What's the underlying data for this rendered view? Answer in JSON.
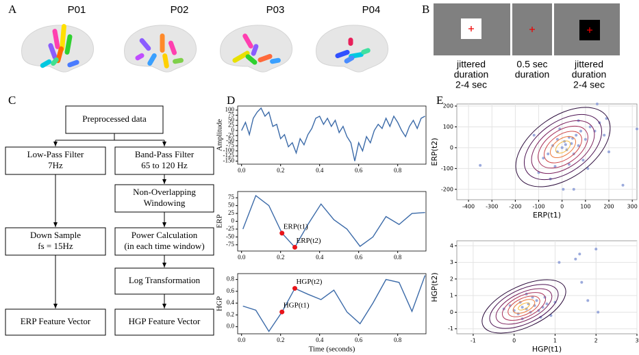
{
  "panel_labels": [
    "A",
    "B",
    "C",
    "D",
    "E"
  ],
  "participants": [
    "P01",
    "P02",
    "P03",
    "P04"
  ],
  "stimulus": {
    "captions": [
      [
        "jittered",
        "duration",
        "2-4 sec"
      ],
      [
        "0.5 sec",
        "duration"
      ],
      [
        "jittered",
        "duration",
        "2-4 sec"
      ]
    ]
  },
  "flowchart": {
    "nodes": [
      {
        "lines": [
          "Preprocessed data"
        ]
      },
      {
        "lines": [
          "Low-Pass Filter",
          "7Hz"
        ]
      },
      {
        "lines": [
          "Band-Pass Filter",
          "65 to 120 Hz"
        ]
      },
      {
        "lines": [
          "Non-Overlapping",
          "Windowing"
        ]
      },
      {
        "lines": [
          "Down Sample",
          "fs = 15Hz"
        ]
      },
      {
        "lines": [
          "Power Calculation",
          "(in each time window)"
        ]
      },
      {
        "lines": [
          "Log Transformation"
        ]
      },
      {
        "lines": [
          "ERP Feature Vector"
        ]
      },
      {
        "lines": [
          "HGP Feature Vector"
        ]
      }
    ]
  },
  "chart_data": [
    {
      "type": "line",
      "ylabel": "Amplitude",
      "color": "#3b6aa8",
      "x": [
        0,
        0.02,
        0.04,
        0.06,
        0.08,
        0.1,
        0.12,
        0.14,
        0.16,
        0.18,
        0.2,
        0.22,
        0.24,
        0.26,
        0.28,
        0.3,
        0.32,
        0.34,
        0.36,
        0.38,
        0.4,
        0.42,
        0.44,
        0.46,
        0.48,
        0.5,
        0.52,
        0.54,
        0.56,
        0.58,
        0.6,
        0.62,
        0.64,
        0.66,
        0.68,
        0.7,
        0.72,
        0.74,
        0.76,
        0.78,
        0.8,
        0.82,
        0.84,
        0.86,
        0.88,
        0.9,
        0.92,
        0.94
      ],
      "values": [
        0,
        40,
        -20,
        60,
        90,
        110,
        70,
        90,
        20,
        30,
        -40,
        -20,
        -80,
        -60,
        -110,
        -40,
        -70,
        -20,
        10,
        60,
        70,
        30,
        60,
        20,
        50,
        -10,
        20,
        -30,
        -60,
        -150,
        -60,
        -100,
        -30,
        -60,
        0,
        30,
        10,
        60,
        20,
        70,
        40,
        0,
        -30,
        20,
        50,
        10,
        60,
        70
      ],
      "xlim": [
        -0.02,
        0.945
      ],
      "ylim": [
        -165,
        120
      ],
      "xticks": [
        {
          "value": 0,
          "label": "0.0"
        },
        0.2,
        0.4,
        0.6,
        0.8
      ],
      "yticks": [
        -150,
        -125,
        -100,
        -75,
        -50,
        -25,
        0,
        25,
        50,
        75,
        100
      ],
      "grid": false
    },
    {
      "type": "line",
      "ylabel": "ERP",
      "color": "#3b6aa8",
      "x": [
        0.007,
        0.073,
        0.14,
        0.207,
        0.273,
        0.34,
        0.407,
        0.473,
        0.54,
        0.607,
        0.673,
        0.74,
        0.807,
        0.873,
        0.94
      ],
      "values": [
        -25,
        82,
        50,
        -38,
        -83,
        -10,
        55,
        5,
        -25,
        -80,
        -50,
        15,
        -10,
        25,
        28
      ],
      "highlight": [
        {
          "index": 3,
          "label": "ERP(t1)"
        },
        {
          "index": 4,
          "label": "ERP(t2)"
        }
      ],
      "highlight_color": "#e8141a",
      "xlim": [
        -0.02,
        0.945
      ],
      "ylim": [
        -95,
        95
      ],
      "xticks": [
        {
          "value": 0,
          "label": "0.0"
        },
        0.2,
        0.4,
        0.6,
        0.8
      ],
      "yticks": [
        -75,
        -50,
        -25,
        0,
        25,
        50,
        75
      ],
      "grid": false
    },
    {
      "type": "line",
      "ylabel": "HGP",
      "xlabel": "Time (seconds)",
      "color": "#3b6aa8",
      "x": [
        0.007,
        0.073,
        0.14,
        0.207,
        0.273,
        0.34,
        0.407,
        0.473,
        0.54,
        0.607,
        0.673,
        0.74,
        0.807,
        0.873,
        0.94
      ],
      "values": [
        0.35,
        0.28,
        -0.08,
        0.25,
        0.65,
        0.55,
        0.46,
        0.62,
        0.25,
        0.05,
        0.4,
        0.8,
        0.75,
        0.26,
        0.87
      ],
      "highlight": [
        {
          "index": 3,
          "label": "HGP(t1)"
        },
        {
          "index": 4,
          "label": "HGP(t2)"
        }
      ],
      "highlight_color": "#e8141a",
      "xlim": [
        -0.02,
        0.945
      ],
      "ylim": [
        -0.12,
        0.9
      ],
      "xticks": [
        {
          "value": 0,
          "label": "0.0"
        },
        0.2,
        0.4,
        0.6,
        0.8
      ],
      "yticks": [
        {
          "value": 0,
          "label": "0.0"
        },
        0.2,
        0.4,
        0.6,
        0.8
      ],
      "grid": false
    },
    {
      "type": "scatter",
      "xlabel": "ERP(t1)",
      "ylabel": "ERP(t2)",
      "color": "#8a9bd6",
      "x": [
        -350,
        260,
        50,
        5,
        -50,
        -100,
        -80,
        -60,
        -40,
        -20,
        0,
        10,
        20,
        30,
        40,
        50,
        60,
        70,
        80,
        100,
        120,
        140,
        160,
        180,
        200,
        -120,
        -10,
        30,
        90,
        -30,
        110,
        70,
        190,
        320,
        150,
        -20,
        15,
        45
      ],
      "values": [
        -85,
        -180,
        -200,
        -200,
        -150,
        -120,
        -50,
        -30,
        10,
        -20,
        0,
        30,
        -10,
        50,
        20,
        -30,
        60,
        10,
        80,
        40,
        100,
        80,
        120,
        60,
        -20,
        60,
        90,
        -80,
        -60,
        -90,
        -100,
        130,
        140,
        90,
        210,
        40,
        15,
        45
      ],
      "xlim": [
        -450,
        320
      ],
      "ylim": [
        -250,
        210
      ],
      "xticks": [
        -400,
        -300,
        -200,
        -100,
        0,
        100,
        200,
        300
      ],
      "yticks": [
        -200,
        -100,
        0,
        100,
        200
      ],
      "grid": true
    },
    {
      "type": "scatter",
      "xlabel": "HGP(t1)",
      "ylabel": "HGP(t2)",
      "color": "#8a9bd6",
      "x": [
        -0.25,
        -0.1,
        0,
        0.1,
        0.2,
        0.3,
        0.35,
        0.4,
        0.5,
        0.55,
        0.6,
        0.7,
        0.8,
        0.9,
        1.0,
        1.1,
        1.5,
        1.6,
        2.0,
        1.65,
        1.8,
        2.05,
        0.2,
        0.45,
        0.65,
        0.15,
        0.3,
        0.75
      ],
      "values": [
        0.2,
        0.4,
        0.1,
        -0.1,
        0.3,
        0.2,
        0.5,
        0,
        0.4,
        0.7,
        0.1,
        0.3,
        0.5,
        -0.2,
        0.6,
        3.0,
        3.2,
        3.5,
        3.8,
        1.8,
        0.7,
        0,
        -0.4,
        0.9,
        -0.3,
        0.6,
        1.1,
        0.9
      ],
      "xlim": [
        -1.4,
        3
      ],
      "ylim": [
        -1.3,
        4.3
      ],
      "xticks": [
        -1,
        0,
        1,
        2,
        3
      ],
      "yticks": [
        -1,
        0,
        1,
        2,
        3,
        4
      ],
      "grid": true
    }
  ]
}
